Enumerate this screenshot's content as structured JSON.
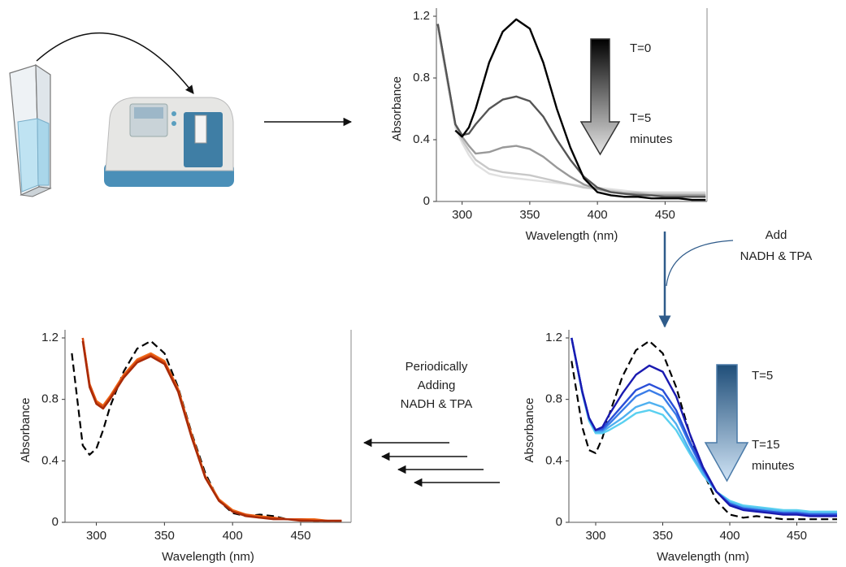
{
  "annotations": [
    [
      "Add",
      "NADH & TPA"
    ],
    [
      "Periodically",
      "Adding",
      "NADH & TPA"
    ]
  ],
  "chart_data": [
    {
      "type": "line",
      "xlabel": "Wavelength (nm)",
      "ylabel": "Absorbance",
      "xlim": [
        281,
        481
      ],
      "ylim": [
        0,
        1.2
      ],
      "xticks": [
        300,
        350,
        400,
        450
      ],
      "yticks": [
        0,
        0.4,
        0.8,
        1.2
      ],
      "annotations": [
        [
          "T=0"
        ],
        [
          "T=5",
          "minutes"
        ]
      ],
      "x": [
        282,
        290,
        295,
        300,
        305,
        310,
        320,
        330,
        340,
        350,
        360,
        370,
        380,
        390,
        400,
        410,
        420,
        430,
        440,
        450,
        460,
        470,
        480
      ],
      "series": [
        {
          "color": "#e0e0e0",
          "values": [
            1.12,
            0.72,
            0.48,
            0.38,
            0.3,
            0.24,
            0.18,
            0.16,
            0.15,
            0.14,
            0.13,
            0.12,
            0.11,
            0.1,
            0.09,
            0.08,
            0.07,
            0.06,
            0.06,
            0.06,
            0.06,
            0.06,
            0.06
          ]
        },
        {
          "color": "#c8c8c8",
          "values": [
            1.15,
            0.75,
            0.5,
            0.4,
            0.33,
            0.27,
            0.21,
            0.19,
            0.18,
            0.17,
            0.15,
            0.13,
            0.11,
            0.09,
            0.08,
            0.07,
            0.06,
            0.06,
            0.05,
            0.05,
            0.05,
            0.05,
            0.05
          ]
        },
        {
          "color": "#999999",
          "values": [
            1.15,
            0.75,
            0.5,
            0.42,
            0.36,
            0.31,
            0.32,
            0.35,
            0.36,
            0.34,
            0.29,
            0.22,
            0.16,
            0.11,
            0.08,
            0.06,
            0.05,
            0.05,
            0.04,
            0.04,
            0.04,
            0.04,
            0.04
          ]
        },
        {
          "color": "#555555",
          "values": [
            1.15,
            0.75,
            0.5,
            0.43,
            0.44,
            0.5,
            0.6,
            0.66,
            0.68,
            0.65,
            0.55,
            0.4,
            0.27,
            0.16,
            0.09,
            0.06,
            0.05,
            0.04,
            0.04,
            0.03,
            0.03,
            0.03,
            0.03
          ]
        },
        {
          "color": "#000000",
          "values": [
            null,
            null,
            0.46,
            0.42,
            0.48,
            0.6,
            0.9,
            1.1,
            1.18,
            1.12,
            0.9,
            0.6,
            0.35,
            0.15,
            0.06,
            0.04,
            0.03,
            0.03,
            0.02,
            0.02,
            0.02,
            0.01,
            0.01
          ]
        }
      ]
    },
    {
      "type": "line",
      "xlabel": "Wavelength (nm)",
      "ylabel": "Absorbance",
      "xlim": [
        280,
        480
      ],
      "ylim": [
        0,
        1.2
      ],
      "xticks": [
        300,
        350,
        400,
        450
      ],
      "yticks": [
        0,
        0.4,
        0.8,
        1.2
      ],
      "annotations": [
        [
          "T=5"
        ],
        [
          "T=15",
          "minutes"
        ]
      ],
      "x": [
        282,
        290,
        295,
        300,
        305,
        310,
        320,
        330,
        340,
        350,
        360,
        370,
        380,
        390,
        400,
        410,
        420,
        430,
        440,
        450,
        460,
        470,
        480
      ],
      "series": [
        {
          "color": "#000000",
          "style": "dashed",
          "values": [
            1.05,
            0.62,
            0.47,
            0.45,
            0.55,
            0.7,
            0.95,
            1.12,
            1.18,
            1.1,
            0.88,
            0.58,
            0.33,
            0.14,
            0.05,
            0.03,
            0.04,
            0.03,
            0.02,
            0.02,
            0.02,
            0.02,
            0.02
          ]
        },
        {
          "color": "#5ad0f0",
          "values": [
            1.2,
            0.84,
            0.66,
            0.58,
            0.58,
            0.6,
            0.65,
            0.71,
            0.73,
            0.7,
            0.6,
            0.45,
            0.31,
            0.2,
            0.14,
            0.11,
            0.1,
            0.09,
            0.08,
            0.08,
            0.07,
            0.07,
            0.07
          ]
        },
        {
          "color": "#4fb0f0",
          "values": [
            1.2,
            0.85,
            0.67,
            0.59,
            0.59,
            0.62,
            0.68,
            0.75,
            0.78,
            0.75,
            0.64,
            0.47,
            0.32,
            0.2,
            0.13,
            0.1,
            0.09,
            0.08,
            0.07,
            0.07,
            0.06,
            0.06,
            0.06
          ]
        },
        {
          "color": "#3a7de8",
          "values": [
            1.2,
            0.85,
            0.68,
            0.6,
            0.6,
            0.64,
            0.73,
            0.82,
            0.86,
            0.82,
            0.7,
            0.51,
            0.34,
            0.2,
            0.12,
            0.09,
            0.08,
            0.07,
            0.06,
            0.06,
            0.05,
            0.05,
            0.05
          ]
        },
        {
          "color": "#2a4fd8",
          "values": [
            1.2,
            0.85,
            0.68,
            0.6,
            0.61,
            0.66,
            0.76,
            0.86,
            0.9,
            0.86,
            0.73,
            0.53,
            0.35,
            0.2,
            0.12,
            0.09,
            0.08,
            0.07,
            0.06,
            0.06,
            0.05,
            0.05,
            0.05
          ]
        },
        {
          "color": "#1a1ab0",
          "values": [
            1.2,
            0.85,
            0.68,
            0.6,
            0.62,
            0.7,
            0.84,
            0.96,
            1.02,
            0.98,
            0.82,
            0.58,
            0.36,
            0.2,
            0.11,
            0.08,
            0.07,
            0.06,
            0.05,
            0.05,
            0.04,
            0.04,
            0.04
          ]
        }
      ]
    },
    {
      "type": "line",
      "xlabel": "Wavelength (nm)",
      "ylabel": "Absorbance",
      "xlim": [
        277,
        487
      ],
      "ylim": [
        0,
        1.2
      ],
      "xticks": [
        300,
        350,
        400,
        450
      ],
      "yticks": [
        0,
        0.4,
        0.8,
        1.2
      ],
      "x": [
        282,
        290,
        295,
        300,
        305,
        310,
        320,
        330,
        340,
        350,
        360,
        370,
        380,
        390,
        400,
        410,
        420,
        430,
        440,
        450,
        460,
        470,
        480
      ],
      "series": [
        {
          "color": "#000000",
          "style": "dashed",
          "values": [
            1.1,
            0.5,
            0.44,
            0.48,
            0.6,
            0.75,
            0.98,
            1.13,
            1.18,
            1.1,
            0.88,
            0.58,
            0.32,
            0.14,
            0.06,
            0.04,
            0.05,
            0.04,
            0.02,
            0.02,
            0.01,
            0.01,
            0.01
          ]
        },
        {
          "color": "#f06a1a",
          "values": [
            null,
            1.2,
            0.9,
            0.79,
            0.76,
            0.82,
            0.96,
            1.06,
            1.1,
            1.05,
            0.87,
            0.57,
            0.3,
            0.15,
            0.08,
            0.05,
            0.04,
            0.03,
            0.02,
            0.02,
            0.02,
            0.01,
            0.01
          ]
        },
        {
          "color": "#d84a10",
          "values": [
            null,
            1.2,
            0.9,
            0.78,
            0.75,
            0.81,
            0.95,
            1.05,
            1.09,
            1.04,
            0.86,
            0.56,
            0.29,
            0.14,
            0.07,
            0.05,
            0.03,
            0.03,
            0.02,
            0.02,
            0.01,
            0.01,
            0.01
          ]
        },
        {
          "color": "#a82a08",
          "values": [
            null,
            1.18,
            0.88,
            0.77,
            0.74,
            0.8,
            0.94,
            1.04,
            1.08,
            1.03,
            0.85,
            0.55,
            0.29,
            0.14,
            0.07,
            0.04,
            0.03,
            0.02,
            0.02,
            0.01,
            0.01,
            0.01,
            0.01
          ]
        }
      ]
    }
  ]
}
